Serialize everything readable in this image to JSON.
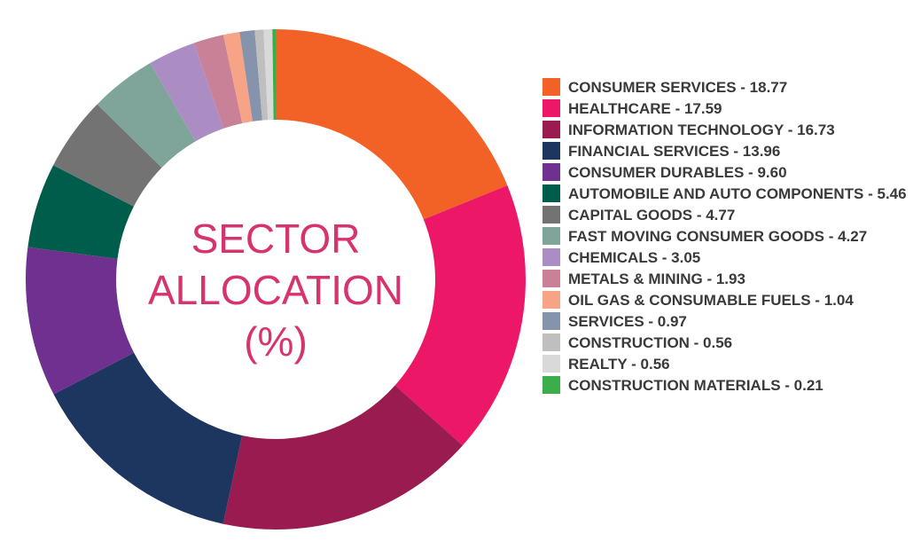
{
  "chart_data": {
    "type": "pie",
    "donut": true,
    "title": "SECTOR ALLOCATION (%)",
    "categories": [
      "CONSUMER SERVICES - 18.77",
      "HEALTHCARE - 17.59",
      "INFORMATION TECHNOLOGY - 16.73",
      "FINANCIAL SERVICES - 13.96",
      "CONSUMER DURABLES - 9.60",
      "AUTOMOBILE AND AUTO COMPONENTS - 5.46",
      "CAPITAL GOODS - 4.77",
      "FAST MOVING CONSUMER GOODS - 4.27",
      "CHEMICALS - 3.05",
      "METALS & MINING - 1.93",
      "OIL GAS & CONSUMABLE FUELS - 1.04",
      "SERVICES - 0.97",
      "CONSTRUCTION - 0.56",
      "REALTY - 0.56",
      "CONSTRUCTION MATERIALS - 0.21"
    ],
    "values": [
      18.77,
      17.59,
      16.73,
      13.96,
      9.6,
      5.46,
      4.77,
      4.27,
      3.05,
      1.93,
      1.04,
      0.97,
      0.56,
      0.56,
      0.21
    ],
    "colors": [
      "#f26126",
      "#ed1768",
      "#9a1b50",
      "#1c3660",
      "#70308f",
      "#005d4b",
      "#737373",
      "#7fa59b",
      "#ab8dc4",
      "#c98197",
      "#f7a385",
      "#8593ad",
      "#bfbfbf",
      "#d9d9d9",
      "#3cae49"
    ]
  }
}
